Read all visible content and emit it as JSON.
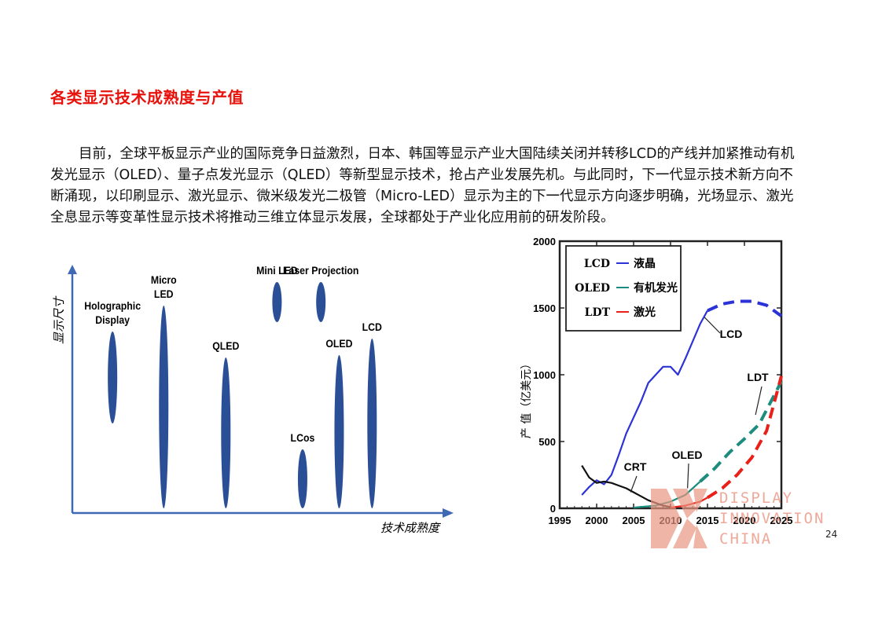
{
  "slide": {
    "title": "各类显示技术成熟度与产值",
    "paragraph_lines": [
      "目前，全球平板显示产业的国际竞争日益激烈，日本、韩国等显示产业大国陆续关闭并转移LCD的产线并加紧推动有机",
      "发光显示（OLED）、量子点发光显示（QLED）等新型显示技术，抢占产业发展先机。与此同时，下一代显示技术新方向不",
      "断涌现，以印刷显示、激光显示、微米级发光二极管（Micro-LED）显示为主的下一代显示方向逐步明确，光场显示、激光",
      "全息显示等变革性显示技术将推动三维立体显示发展，全球都处于产业化应用前的研发阶段。"
    ],
    "page_number": "24"
  },
  "watermark": {
    "lines": [
      "DISPLAY",
      "INNOVATION",
      "CHINA"
    ],
    "color": "#e8a090"
  },
  "chart_data": [
    {
      "type": "scatter",
      "title": "",
      "xlabel": "技术成熟度",
      "ylabel": "显示尺寸",
      "color": "#2a4f96",
      "points": [
        {
          "label": "Holographic Display",
          "maturity": 0.11,
          "size_min": 0.38,
          "size_max": 0.77
        },
        {
          "label": "Micro LED",
          "maturity": 0.25,
          "size_min": 0.02,
          "size_max": 0.88
        },
        {
          "label": "Mini LED",
          "maturity": 0.56,
          "size_min": 0.81,
          "size_max": 0.98
        },
        {
          "label": "Laser Projection",
          "maturity": 0.68,
          "size_min": 0.81,
          "size_max": 0.98
        },
        {
          "label": "QLED",
          "maturity": 0.42,
          "size_min": 0.02,
          "size_max": 0.66
        },
        {
          "label": "LCos",
          "maturity": 0.63,
          "size_min": 0.02,
          "size_max": 0.27
        },
        {
          "label": "OLED",
          "maturity": 0.73,
          "size_min": 0.02,
          "size_max": 0.67
        },
        {
          "label": "LCD",
          "maturity": 0.82,
          "size_min": 0.02,
          "size_max": 0.74
        }
      ]
    },
    {
      "type": "line",
      "title": "",
      "xlabel": "",
      "ylabel": "产 值（亿美元）",
      "xlim": [
        1995,
        2025
      ],
      "ylim": [
        0,
        2000
      ],
      "xticks": [
        "1995",
        "2000",
        "2005",
        "2010",
        "2015",
        "2020",
        "2025"
      ],
      "yticks": [
        "0",
        "500",
        "1000",
        "1500",
        "2000"
      ],
      "legend": {
        "position": "top-left",
        "entries": [
          {
            "key": "LCD",
            "desc": "液晶",
            "color": "#2b32d6"
          },
          {
            "key": "OLED",
            "desc": "有机发光",
            "color": "#1c8c7c"
          },
          {
            "key": "LDT",
            "desc": "激光",
            "color": "#e8201a"
          }
        ]
      },
      "annotations": [
        "LCD",
        "LDT",
        "OLED",
        "CRT"
      ],
      "series": [
        {
          "name": "LCD",
          "color": "#2b32d6",
          "style": "solid",
          "x": [
            1998,
            1999,
            2000,
            2001,
            2002,
            2003,
            2004,
            2005,
            2006,
            2007,
            2008,
            2009,
            2010,
            2011,
            2012,
            2013,
            2014,
            2015
          ],
          "y": [
            100,
            160,
            210,
            180,
            250,
            400,
            560,
            680,
            800,
            940,
            1000,
            1060,
            1060,
            1000,
            1120,
            1250,
            1380,
            1480
          ]
        },
        {
          "name": "LCD",
          "color": "#2b32d6",
          "style": "dashed",
          "x": [
            2015,
            2017,
            2019,
            2021,
            2023,
            2025
          ],
          "y": [
            1480,
            1530,
            1550,
            1550,
            1520,
            1440
          ]
        },
        {
          "name": "OLED",
          "color": "#1c8c7c",
          "style": "solid",
          "x": [
            2005,
            2008,
            2010,
            2012,
            2013,
            2014
          ],
          "y": [
            5,
            20,
            50,
            100,
            150,
            200
          ]
        },
        {
          "name": "OLED",
          "color": "#1c8c7c",
          "style": "dashed",
          "x": [
            2014,
            2016,
            2018,
            2020,
            2022,
            2025
          ],
          "y": [
            200,
            300,
            420,
            520,
            630,
            950
          ]
        },
        {
          "name": "CRT",
          "color": "#111111",
          "style": "solid",
          "x": [
            1998,
            1999,
            2000,
            2001,
            2002,
            2003,
            2004,
            2005,
            2006,
            2007,
            2008,
            2009,
            2010
          ],
          "y": [
            320,
            230,
            190,
            200,
            190,
            170,
            150,
            120,
            90,
            60,
            40,
            20,
            10
          ]
        },
        {
          "name": "LDT",
          "color": "#e8201a",
          "style": "solid",
          "x": [
            2010,
            2012,
            2014,
            2015
          ],
          "y": [
            5,
            20,
            50,
            80
          ]
        },
        {
          "name": "LDT",
          "color": "#e8201a",
          "style": "dashed",
          "x": [
            2015,
            2017,
            2019,
            2021,
            2023,
            2025
          ],
          "y": [
            80,
            150,
            250,
            380,
            580,
            990
          ]
        }
      ]
    }
  ]
}
